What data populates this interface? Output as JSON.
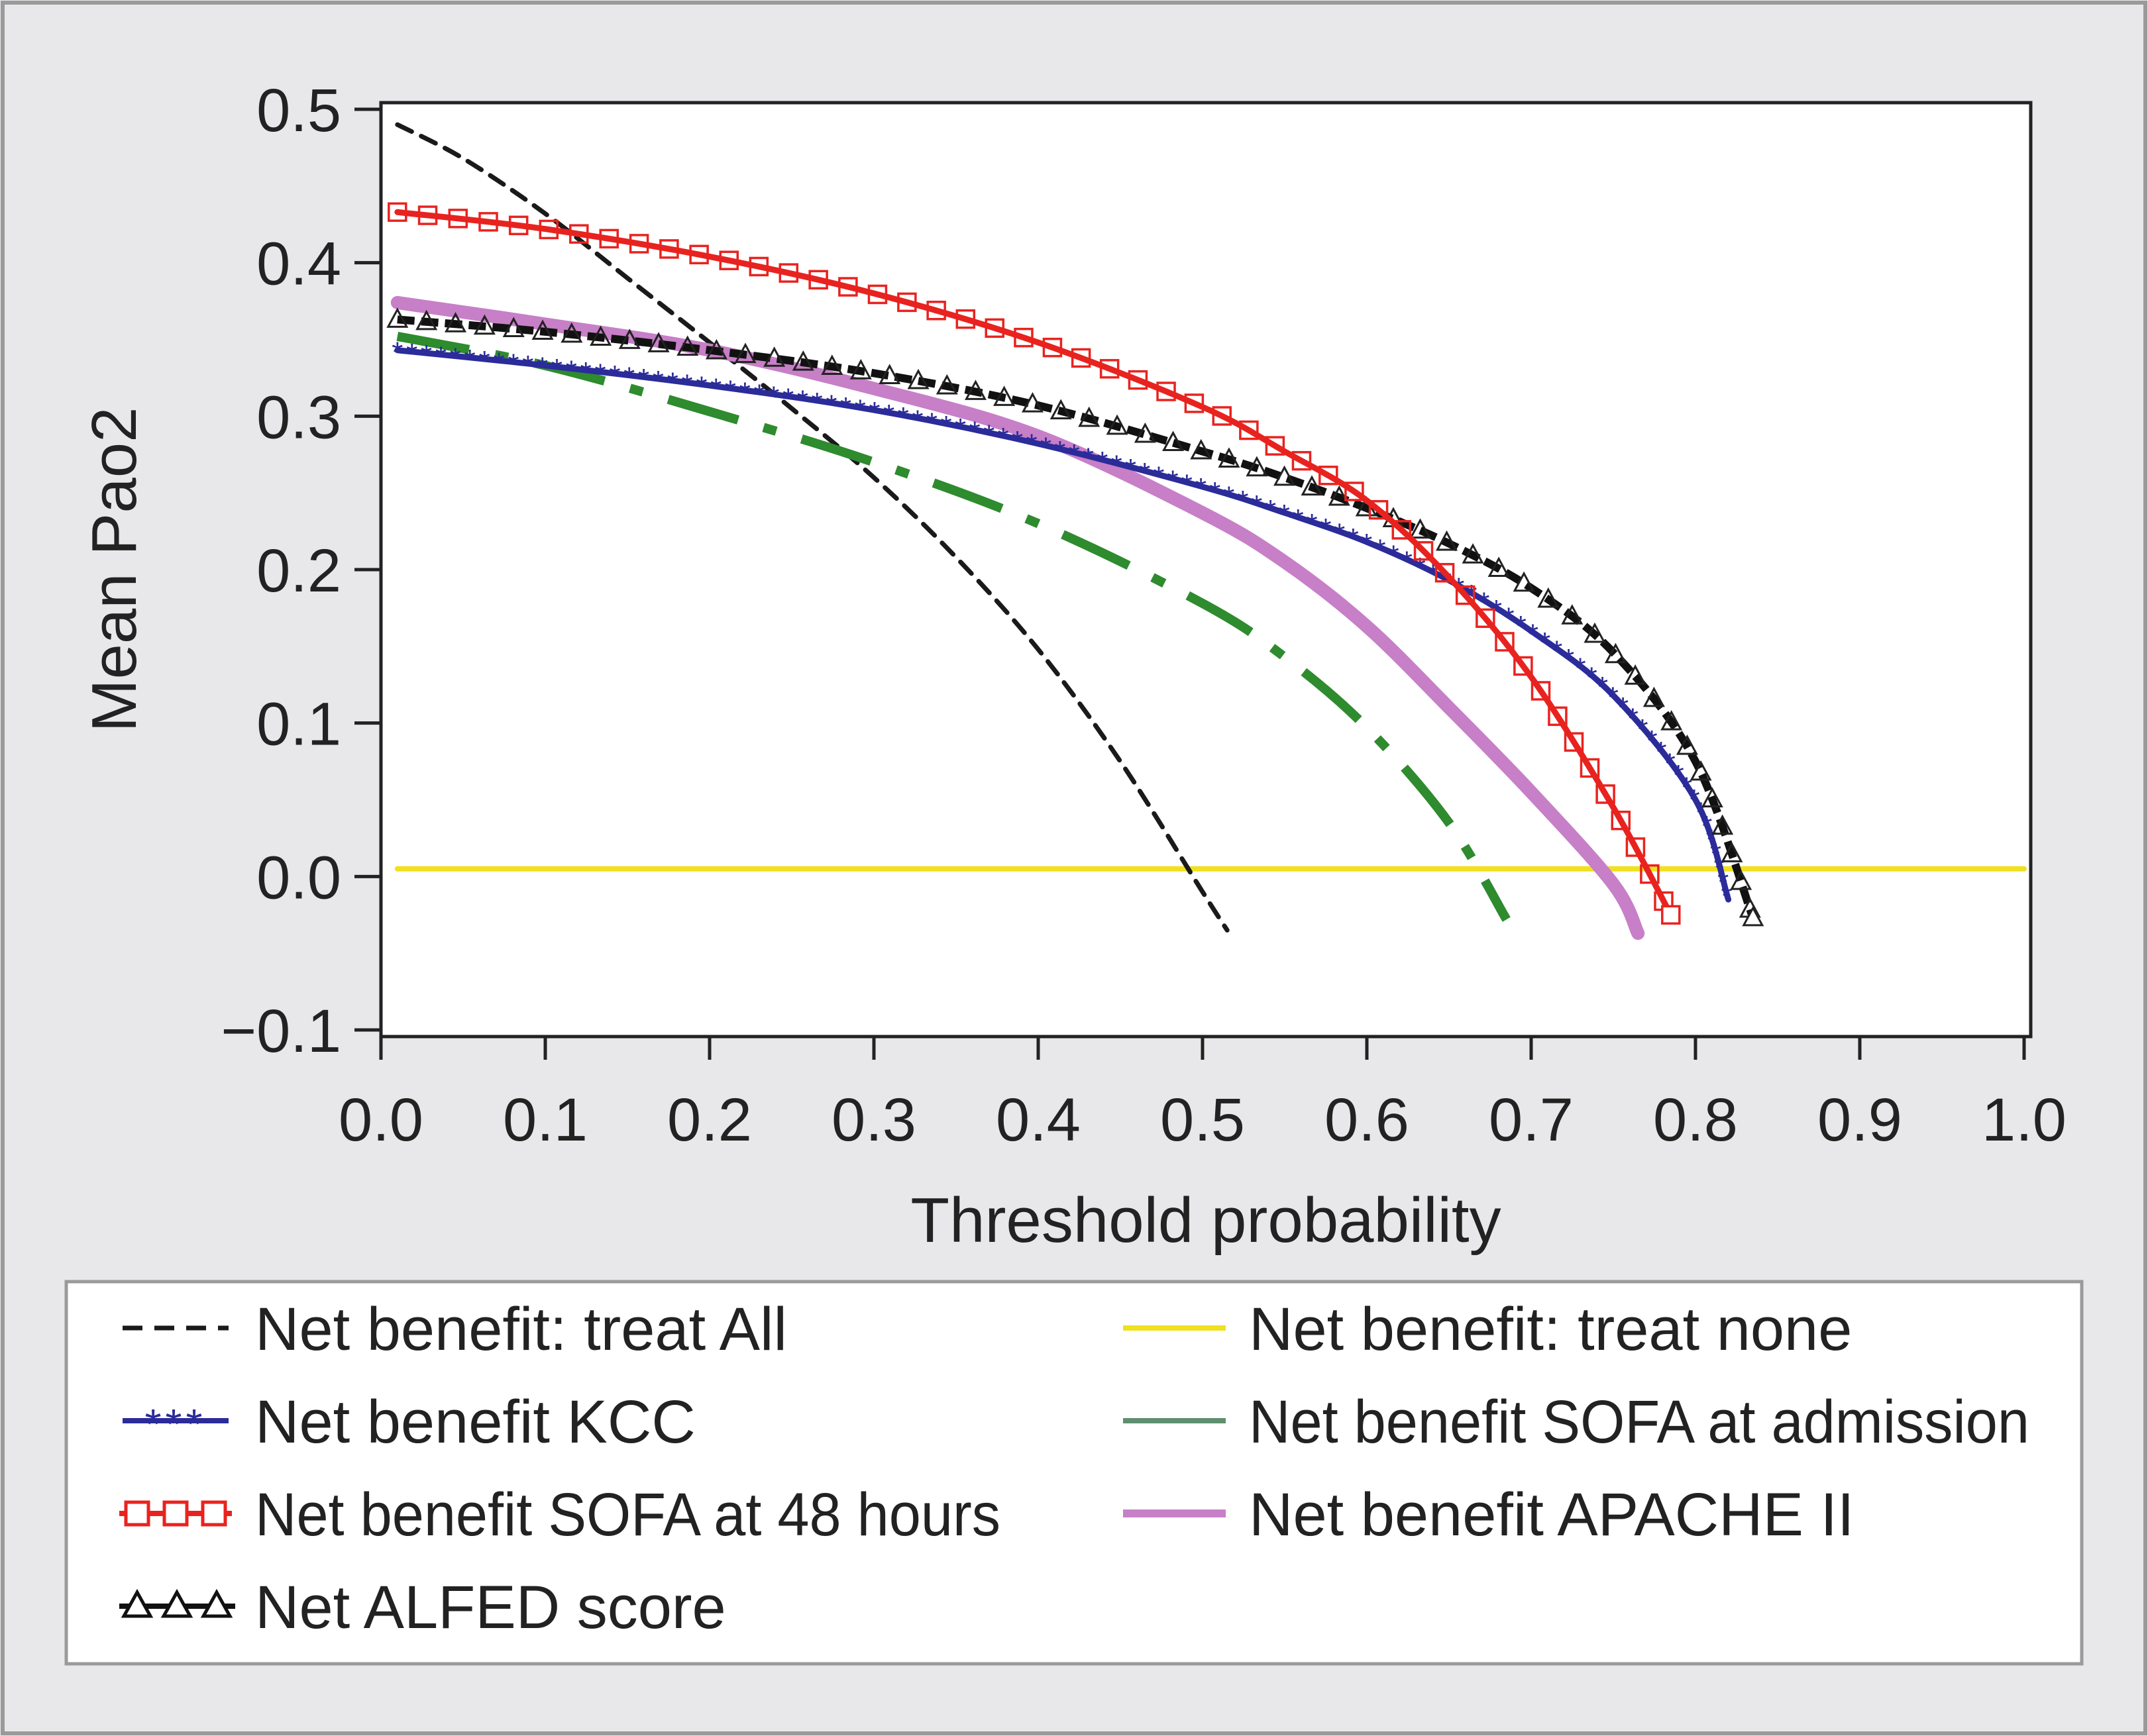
{
  "chart_data": {
    "type": "line",
    "xlabel": "Threshold probability",
    "ylabel": "Mean Pao2",
    "xlim": [
      0.0,
      1.0
    ],
    "ylim": [
      -0.1,
      0.5
    ],
    "xticks": [
      "0.0",
      "0.1",
      "0.2",
      "0.3",
      "0.4",
      "0.5",
      "0.6",
      "0.7",
      "0.8",
      "0.9",
      "1.0"
    ],
    "yticks": [
      "0.5",
      "0.4",
      "0.3",
      "0.2",
      "0.1",
      "0.0",
      "−0.1"
    ],
    "grid": false,
    "legend_position": "bottom",
    "series": [
      {
        "name": "Net benefit: treat All",
        "color": "#1a1a1a",
        "style": "dashed",
        "x": [
          0.01,
          0.05,
          0.1,
          0.15,
          0.2,
          0.25,
          0.3,
          0.35,
          0.4,
          0.45,
          0.5,
          0.515
        ],
        "y": [
          0.49,
          0.468,
          0.432,
          0.39,
          0.348,
          0.305,
          0.26,
          0.208,
          0.148,
          0.075,
          -0.01,
          -0.035
        ]
      },
      {
        "name": "Net benefit: treat none",
        "color": "#f0e020",
        "style": "solid",
        "x": [
          0.01,
          1.0
        ],
        "y": [
          0.005,
          0.005
        ]
      },
      {
        "name": "Net benefit KCC",
        "color": "#2b2b9a",
        "style": "star",
        "x": [
          0.01,
          0.1,
          0.2,
          0.3,
          0.4,
          0.5,
          0.55,
          0.6,
          0.65,
          0.7,
          0.75,
          0.8,
          0.82
        ],
        "y": [
          0.343,
          0.333,
          0.32,
          0.304,
          0.282,
          0.254,
          0.237,
          0.218,
          0.193,
          0.16,
          0.118,
          0.05,
          -0.015
        ]
      },
      {
        "name": "Net benefit SOFA at admission",
        "color": "#2e8b2e",
        "style": "dashdot",
        "x": [
          0.01,
          0.1,
          0.2,
          0.3,
          0.4,
          0.5,
          0.55,
          0.6,
          0.65,
          0.685
        ],
        "y": [
          0.352,
          0.333,
          0.303,
          0.27,
          0.23,
          0.178,
          0.143,
          0.097,
          0.035,
          -0.028
        ]
      },
      {
        "name": "Net benefit SOFA at 48 hours",
        "color": "#e8231f",
        "style": "square",
        "x": [
          0.01,
          0.1,
          0.2,
          0.3,
          0.4,
          0.5,
          0.55,
          0.6,
          0.65,
          0.7,
          0.75,
          0.785
        ],
        "y": [
          0.433,
          0.422,
          0.404,
          0.38,
          0.348,
          0.306,
          0.277,
          0.245,
          0.195,
          0.13,
          0.045,
          -0.025
        ]
      },
      {
        "name": "Net benefit APACHE II",
        "color": "#c77fc7",
        "style": "thick",
        "x": [
          0.01,
          0.1,
          0.2,
          0.3,
          0.4,
          0.5,
          0.55,
          0.6,
          0.65,
          0.7,
          0.75,
          0.765
        ],
        "y": [
          0.374,
          0.36,
          0.343,
          0.318,
          0.287,
          0.237,
          0.205,
          0.163,
          0.11,
          0.055,
          -0.005,
          -0.037
        ]
      },
      {
        "name": "Net ALFED score",
        "color": "#111111",
        "style": "triangle",
        "x": [
          0.01,
          0.1,
          0.2,
          0.3,
          0.4,
          0.5,
          0.55,
          0.6,
          0.65,
          0.7,
          0.75,
          0.8,
          0.835
        ],
        "y": [
          0.363,
          0.355,
          0.343,
          0.328,
          0.307,
          0.277,
          0.26,
          0.24,
          0.217,
          0.188,
          0.146,
          0.075,
          -0.027
        ]
      }
    ]
  },
  "legend": {
    "left": [
      "Net benefit: treat All",
      "Net benefit KCC",
      "Net benefit SOFA at 48 hours",
      "Net ALFED score"
    ],
    "right": [
      "Net benefit: treat none",
      "Net benefit SOFA at admission",
      "Net benefit APACHE II"
    ]
  }
}
